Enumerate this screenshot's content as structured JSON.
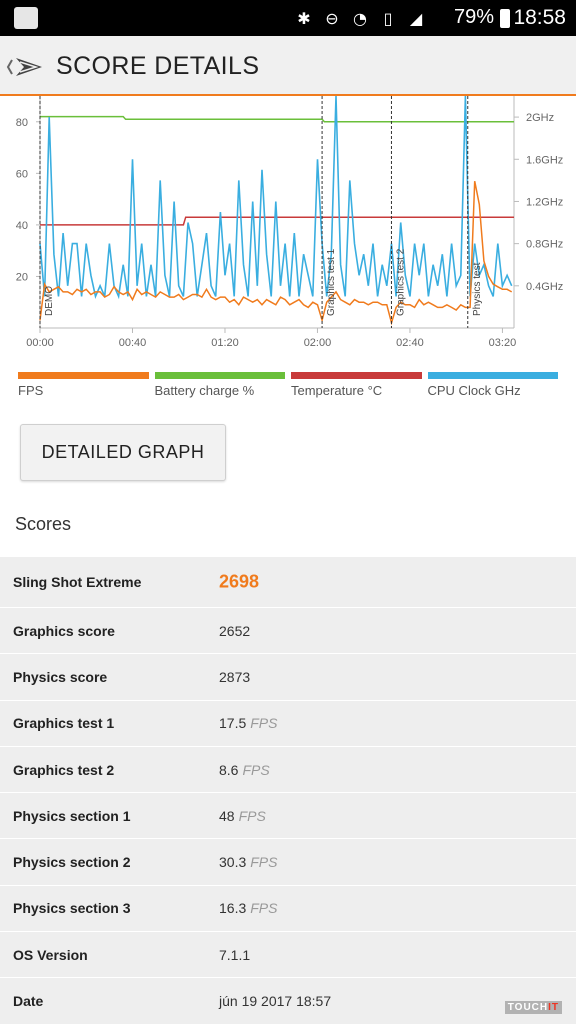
{
  "status_bar": {
    "battery": "79%",
    "time": "18:58",
    "icons": [
      "bluetooth-icon",
      "do-not-disturb-icon",
      "wifi-icon",
      "no-sim-icon",
      "signal-icon"
    ]
  },
  "app_bar": {
    "title": "SCORE DETAILS"
  },
  "chart_data": {
    "type": "line",
    "x_ticks": [
      "00:00",
      "00:40",
      "01:20",
      "02:00",
      "02:40",
      "03:20"
    ],
    "y_left_ticks": [
      "20",
      "40",
      "60",
      "80"
    ],
    "y_left_range": [
      0,
      90
    ],
    "y_right_ticks": [
      "0.4GHz",
      "0.8GHz",
      "1.2GHz",
      "1.6GHz",
      "2GHz"
    ],
    "markers": [
      {
        "label": "DEMO",
        "x_sec": 0
      },
      {
        "label": "Graphics test 1",
        "x_sec": 122
      },
      {
        "label": "Graphics test 2",
        "x_sec": 152
      },
      {
        "label": "Physics test",
        "x_sec": 185
      }
    ],
    "x_range_sec": [
      0,
      205
    ],
    "series": [
      {
        "name": "FPS",
        "color": "#f07b1d",
        "x": [
          0,
          2,
          4,
          6,
          8,
          10,
          12,
          14,
          16,
          18,
          20,
          22,
          24,
          26,
          28,
          30,
          32,
          34,
          36,
          38,
          40,
          42,
          44,
          46,
          48,
          50,
          52,
          54,
          56,
          58,
          60,
          62,
          64,
          66,
          68,
          70,
          72,
          74,
          76,
          78,
          80,
          82,
          84,
          86,
          88,
          90,
          92,
          94,
          96,
          98,
          100,
          102,
          104,
          106,
          108,
          110,
          112,
          114,
          116,
          118,
          120,
          122,
          124,
          126,
          128,
          130,
          132,
          134,
          136,
          138,
          140,
          142,
          144,
          146,
          148,
          150,
          152,
          154,
          156,
          158,
          160,
          162,
          164,
          166,
          168,
          170,
          172,
          174,
          176,
          178,
          180,
          182,
          184,
          186,
          188,
          190,
          192,
          194,
          196,
          198,
          200,
          202,
          204
        ],
        "values": [
          3,
          17,
          14,
          15,
          16,
          14,
          14,
          13,
          15,
          14,
          15,
          13,
          14,
          14,
          12,
          13,
          16,
          14,
          13,
          14,
          11,
          15,
          13,
          14,
          13,
          12,
          14,
          13,
          12,
          12,
          13,
          11,
          12,
          13,
          13,
          12,
          15,
          12,
          11,
          12,
          12,
          10,
          11,
          9,
          12,
          11,
          10,
          11,
          9,
          11,
          10,
          9,
          12,
          11,
          9,
          10,
          11,
          9,
          8,
          10,
          9,
          3,
          10,
          12,
          14,
          11,
          10,
          9,
          11,
          10,
          10,
          9,
          10,
          10,
          9,
          9,
          2,
          8,
          10,
          9,
          9,
          8,
          11,
          9,
          10,
          9,
          8,
          8,
          9,
          8,
          7,
          9,
          8,
          8,
          57,
          48,
          26,
          20,
          17,
          16,
          15,
          15,
          14
        ]
      },
      {
        "name": "Battery charge %",
        "color": "#6abf3a",
        "x": [
          0,
          36,
          37,
          122,
          123,
          205
        ],
        "values": [
          82,
          82,
          81,
          81,
          80,
          80
        ]
      },
      {
        "name": "Temperature °C",
        "color": "#c83a3a",
        "x": [
          0,
          62,
          63,
          205
        ],
        "values": [
          40,
          40,
          43,
          43
        ]
      },
      {
        "name": "CPU Clock GHz",
        "color": "#3aaee0",
        "x": [
          0,
          2,
          4,
          6,
          8,
          10,
          12,
          14,
          16,
          18,
          20,
          22,
          24,
          26,
          28,
          30,
          32,
          34,
          36,
          38,
          40,
          42,
          44,
          46,
          48,
          50,
          52,
          54,
          56,
          58,
          60,
          62,
          64,
          66,
          68,
          70,
          72,
          74,
          76,
          78,
          80,
          82,
          84,
          86,
          88,
          90,
          92,
          94,
          96,
          98,
          100,
          102,
          104,
          106,
          108,
          110,
          112,
          114,
          116,
          118,
          120,
          122,
          124,
          126,
          128,
          130,
          132,
          134,
          136,
          138,
          140,
          142,
          144,
          146,
          148,
          150,
          152,
          154,
          156,
          158,
          160,
          162,
          164,
          166,
          168,
          170,
          172,
          174,
          176,
          178,
          180,
          182,
          184,
          186,
          188,
          190,
          192,
          194,
          196,
          198,
          200,
          202,
          204
        ],
        "values": [
          0.8,
          0.3,
          2.0,
          0.7,
          0.3,
          0.9,
          0.4,
          0.8,
          0.8,
          0.3,
          0.8,
          0.5,
          0.3,
          0.4,
          0.3,
          0.8,
          0.4,
          0.3,
          0.6,
          0.3,
          1.6,
          0.4,
          0.8,
          0.3,
          0.6,
          0.3,
          1.4,
          0.5,
          0.3,
          1.2,
          0.4,
          0.3,
          1.0,
          0.8,
          0.3,
          0.6,
          0.9,
          0.4,
          0.3,
          1.1,
          0.5,
          0.8,
          0.3,
          1.4,
          0.6,
          0.3,
          1.2,
          0.4,
          1.5,
          0.7,
          0.3,
          1.2,
          0.4,
          0.8,
          0.3,
          0.9,
          0.3,
          0.7,
          0.5,
          0.3,
          1.6,
          0.8,
          0.3,
          0.7,
          2.2,
          0.6,
          0.3,
          1.4,
          0.8,
          0.5,
          0.7,
          0.4,
          0.8,
          0.3,
          0.6,
          0.4,
          0.8,
          0.3,
          1.0,
          0.5,
          0.3,
          0.8,
          0.5,
          0.8,
          0.3,
          0.6,
          0.4,
          0.7,
          0.3,
          0.8,
          0.4,
          0.5,
          2.2,
          0.3,
          0.8,
          0.5,
          0.6,
          0.4,
          0.3,
          0.8,
          0.4,
          0.5,
          0.4
        ]
      }
    ]
  },
  "legend": [
    {
      "label": "FPS",
      "color": "#f07b1d"
    },
    {
      "label": "Battery charge %",
      "color": "#6abf3a"
    },
    {
      "label": "Temperature °C",
      "color": "#c83a3a"
    },
    {
      "label": "CPU Clock GHz",
      "color": "#3aaee0"
    }
  ],
  "detailed_graph_label": "DETAILED GRAPH",
  "scores_heading": "Scores",
  "scores": [
    {
      "label": "Sling Shot Extreme",
      "value": "2698",
      "unit": ""
    },
    {
      "label": "Graphics score",
      "value": "2652",
      "unit": ""
    },
    {
      "label": "Physics score",
      "value": "2873",
      "unit": ""
    },
    {
      "label": "Graphics test 1",
      "value": "17.5",
      "unit": "FPS"
    },
    {
      "label": "Graphics test 2",
      "value": "8.6",
      "unit": "FPS"
    },
    {
      "label": "Physics section 1",
      "value": "48",
      "unit": "FPS"
    },
    {
      "label": "Physics section 2",
      "value": "30.3",
      "unit": "FPS"
    },
    {
      "label": "Physics section 3",
      "value": "16.3",
      "unit": "FPS"
    },
    {
      "label": "OS Version",
      "value": "7.1.1",
      "unit": ""
    },
    {
      "label": "Date",
      "value": "jún 19 2017 18:57",
      "unit": ""
    }
  ],
  "watermark": {
    "part1": "TOUCH",
    "part2": "IT"
  }
}
